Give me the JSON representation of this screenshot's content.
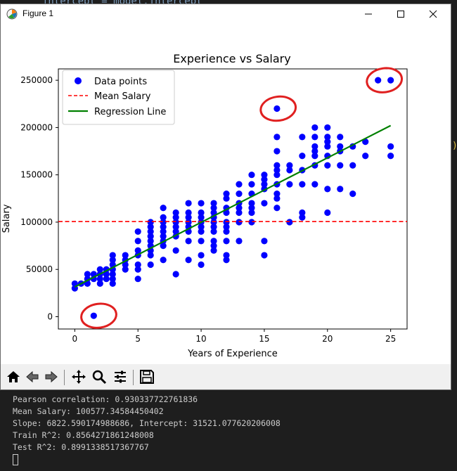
{
  "background_code": "intercept = model.intercept",
  "side_glyph": ")",
  "window": {
    "title": "Figure 1",
    "icons": {
      "app": "matplotlib-icon",
      "minimize": "minimize-icon",
      "maximize": "maximize-icon",
      "close": "close-icon"
    }
  },
  "toolbar": {
    "buttons": [
      "home-icon",
      "back-icon",
      "forward-icon",
      "pan-icon",
      "zoom-icon",
      "configure-icon",
      "save-icon"
    ]
  },
  "chart_data": {
    "type": "scatter",
    "title": "Experience vs Salary",
    "xlabel": "Years of Experience",
    "ylabel": "Salary",
    "xlim": [
      -1.3,
      26.3
    ],
    "ylim": [
      -13000,
      262000
    ],
    "xticks": [
      0,
      5,
      10,
      15,
      20,
      25
    ],
    "xtick_labels": [
      "0",
      "5",
      "10",
      "15",
      "20",
      "25"
    ],
    "yticks": [
      0,
      50000,
      100000,
      150000,
      200000,
      250000
    ],
    "ytick_labels": [
      "0",
      "50000",
      "100000",
      "150000",
      "200000",
      "250000"
    ],
    "grid": false,
    "legend_position": "top-left",
    "legend": [
      "Data points",
      "Mean Salary",
      "Regression Line"
    ],
    "colors": {
      "points": "#0000ff",
      "mean": "#ff0000",
      "regression": "#008000",
      "annotation": "#e02020"
    },
    "mean_salary": 100577.35,
    "regression": {
      "slope": 6822.59,
      "intercept": 31521.08,
      "x_range": [
        0,
        25
      ]
    },
    "points": [
      [
        0,
        30000
      ],
      [
        0,
        35000
      ],
      [
        0.5,
        35000
      ],
      [
        1,
        35000
      ],
      [
        1,
        40000
      ],
      [
        1,
        45000
      ],
      [
        1.5,
        1000
      ],
      [
        1.5,
        40000
      ],
      [
        1.5,
        45000
      ],
      [
        2,
        35000
      ],
      [
        2,
        40000
      ],
      [
        2,
        45000
      ],
      [
        2,
        50000
      ],
      [
        2.5,
        40000
      ],
      [
        2.5,
        45000
      ],
      [
        2.5,
        50000
      ],
      [
        3,
        35000
      ],
      [
        3,
        40000
      ],
      [
        3,
        45000
      ],
      [
        3,
        50000
      ],
      [
        3,
        55000
      ],
      [
        3,
        60000
      ],
      [
        3,
        65000
      ],
      [
        4,
        50000
      ],
      [
        4,
        55000
      ],
      [
        4,
        60000
      ],
      [
        4,
        65000
      ],
      [
        5,
        40000
      ],
      [
        5,
        50000
      ],
      [
        5,
        55000
      ],
      [
        5,
        65000
      ],
      [
        5,
        70000
      ],
      [
        5,
        80000
      ],
      [
        5,
        90000
      ],
      [
        6,
        55000
      ],
      [
        6,
        65000
      ],
      [
        6,
        70000
      ],
      [
        6,
        75000
      ],
      [
        6,
        80000
      ],
      [
        6,
        85000
      ],
      [
        6,
        90000
      ],
      [
        6,
        95000
      ],
      [
        6,
        100000
      ],
      [
        7,
        60000
      ],
      [
        7,
        75000
      ],
      [
        7,
        80000
      ],
      [
        7,
        85000
      ],
      [
        7,
        90000
      ],
      [
        7,
        95000
      ],
      [
        7,
        100000
      ],
      [
        7,
        105000
      ],
      [
        7,
        115000
      ],
      [
        8,
        45000
      ],
      [
        8,
        70000
      ],
      [
        8,
        85000
      ],
      [
        8,
        90000
      ],
      [
        8,
        95000
      ],
      [
        8,
        100000
      ],
      [
        8,
        105000
      ],
      [
        8,
        110000
      ],
      [
        9,
        60000
      ],
      [
        9,
        80000
      ],
      [
        9,
        90000
      ],
      [
        9,
        95000
      ],
      [
        9,
        100000
      ],
      [
        9,
        105000
      ],
      [
        9,
        110000
      ],
      [
        9,
        120000
      ],
      [
        10,
        55000
      ],
      [
        10,
        65000
      ],
      [
        10,
        80000
      ],
      [
        10,
        90000
      ],
      [
        10,
        95000
      ],
      [
        10,
        100000
      ],
      [
        10,
        105000
      ],
      [
        10,
        110000
      ],
      [
        10,
        120000
      ],
      [
        11,
        70000
      ],
      [
        11,
        75000
      ],
      [
        11,
        80000
      ],
      [
        11,
        90000
      ],
      [
        11,
        95000
      ],
      [
        11,
        100000
      ],
      [
        11,
        105000
      ],
      [
        11,
        110000
      ],
      [
        11,
        115000
      ],
      [
        11,
        120000
      ],
      [
        12,
        60000
      ],
      [
        12,
        65000
      ],
      [
        12,
        80000
      ],
      [
        12,
        90000
      ],
      [
        12,
        95000
      ],
      [
        12,
        100000
      ],
      [
        12,
        110000
      ],
      [
        12,
        115000
      ],
      [
        12,
        125000
      ],
      [
        12,
        130000
      ],
      [
        13,
        80000
      ],
      [
        13,
        100000
      ],
      [
        13,
        110000
      ],
      [
        13,
        115000
      ],
      [
        13,
        120000
      ],
      [
        13,
        130000
      ],
      [
        13,
        140000
      ],
      [
        14,
        100000
      ],
      [
        14,
        110000
      ],
      [
        14,
        115000
      ],
      [
        14,
        120000
      ],
      [
        14,
        130000
      ],
      [
        14,
        140000
      ],
      [
        14,
        150000
      ],
      [
        15,
        65000
      ],
      [
        15,
        80000
      ],
      [
        15,
        120000
      ],
      [
        15,
        135000
      ],
      [
        15,
        140000
      ],
      [
        15,
        145000
      ],
      [
        15,
        150000
      ],
      [
        16,
        115000
      ],
      [
        16,
        125000
      ],
      [
        16,
        130000
      ],
      [
        16,
        140000
      ],
      [
        16,
        150000
      ],
      [
        16,
        155000
      ],
      [
        16,
        160000
      ],
      [
        16,
        175000
      ],
      [
        16,
        190000
      ],
      [
        16,
        220000
      ],
      [
        17,
        100000
      ],
      [
        17,
        140000
      ],
      [
        17,
        155000
      ],
      [
        17,
        160000
      ],
      [
        18,
        105000
      ],
      [
        18,
        110000
      ],
      [
        18,
        140000
      ],
      [
        18,
        155000
      ],
      [
        18,
        170000
      ],
      [
        18,
        190000
      ],
      [
        19,
        140000
      ],
      [
        19,
        160000
      ],
      [
        19,
        170000
      ],
      [
        19,
        175000
      ],
      [
        19,
        180000
      ],
      [
        19,
        190000
      ],
      [
        19,
        200000
      ],
      [
        20,
        110000
      ],
      [
        20,
        135000
      ],
      [
        20,
        160000
      ],
      [
        20,
        170000
      ],
      [
        20,
        180000
      ],
      [
        20,
        185000
      ],
      [
        20,
        190000
      ],
      [
        20,
        200000
      ],
      [
        21,
        135000
      ],
      [
        21,
        160000
      ],
      [
        21,
        175000
      ],
      [
        21,
        180000
      ],
      [
        21,
        190000
      ],
      [
        22,
        130000
      ],
      [
        22,
        160000
      ],
      [
        22,
        180000
      ],
      [
        23,
        170000
      ],
      [
        23,
        185000
      ],
      [
        24,
        250000
      ],
      [
        25,
        170000
      ],
      [
        25,
        180000
      ],
      [
        25,
        250000
      ]
    ]
  },
  "annotations": [
    {
      "label": "red-circle-annotation-1",
      "center": [
        1.9,
        1000
      ]
    },
    {
      "label": "red-circle-annotation-2",
      "center": [
        16.1,
        220000
      ]
    },
    {
      "label": "red-circle-annotation-3",
      "center": [
        24.5,
        250000
      ]
    }
  ],
  "console": {
    "lines": [
      "Pearson correlation: 0.930337722761836",
      "Mean Salary: 100577.34584450402",
      "Slope: 6822.590174988686, Intercept: 31521.077620206008",
      "Train R^2: 0.8564271861248008",
      "Test R^2: 0.8991338517367767"
    ]
  }
}
